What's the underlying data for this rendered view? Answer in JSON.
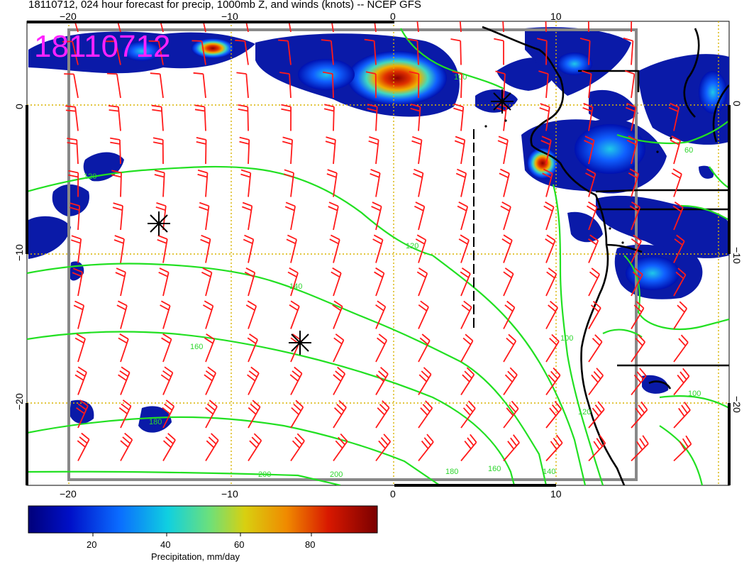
{
  "title": "18110712, 024 hour forecast for precip, 1000mb Z, and winds (knots) -- NCEP GFS",
  "stamp": "18110712",
  "axes": {
    "lon_ticks": [
      "−20",
      "−10",
      "0",
      "10"
    ],
    "lat_ticks": [
      "0",
      "−10",
      "−20"
    ]
  },
  "contour_labels": [
    "120",
    "140",
    "160",
    "180",
    "200",
    "200",
    "180",
    "160",
    "140",
    "120",
    "100",
    "100",
    "100",
    "60"
  ],
  "colorbar": {
    "label": "Precipitation, mm/day",
    "ticks": [
      "20",
      "40",
      "60",
      "80"
    ],
    "range": [
      2,
      96
    ]
  },
  "colors": {
    "contour": "#22e022",
    "barb": "#ff1a1a",
    "coast": "#000000",
    "grid": "#d8b400",
    "stamp": "#ff22ff"
  }
}
